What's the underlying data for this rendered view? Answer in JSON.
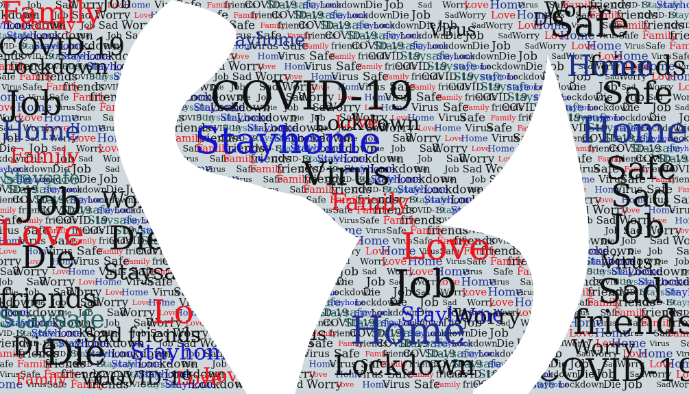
{
  "palette": {
    "background": "#ffffff",
    "land": "#cfd8dc",
    "black": "#111111",
    "red": "#e8151c",
    "blue": "#1414c8",
    "navy": "#1c2f8c",
    "teal": "#1f5f5f",
    "gray": "#444444"
  },
  "words": [
    {
      "text": "Family",
      "color": "red"
    },
    {
      "text": "Job",
      "color": "black"
    },
    {
      "text": "Family",
      "color": "red"
    },
    {
      "text": "COVID-19",
      "color": "black"
    },
    {
      "text": "Lockdown",
      "color": "black"
    },
    {
      "text": "Job",
      "color": "black"
    },
    {
      "text": "Home",
      "color": "navy"
    },
    {
      "text": "Family",
      "color": "red"
    },
    {
      "text": "Staysafe",
      "color": "teal"
    },
    {
      "text": "Job",
      "color": "black"
    },
    {
      "text": "Love",
      "color": "red"
    },
    {
      "text": "Die",
      "color": "black"
    },
    {
      "text": "friends",
      "color": "black"
    },
    {
      "text": "Staysafe",
      "color": "teal"
    },
    {
      "text": "Die",
      "color": "black"
    },
    {
      "text": "Family",
      "color": "red"
    },
    {
      "text": "COVID-19",
      "color": "black"
    },
    {
      "text": "Die",
      "color": "black"
    },
    {
      "text": "Worry",
      "color": "black"
    },
    {
      "text": "Staysafe",
      "color": "black"
    },
    {
      "text": "Stayhome",
      "color": "navy"
    },
    {
      "text": "Stayhome",
      "color": "blue"
    },
    {
      "text": "COVID-19",
      "color": "black"
    },
    {
      "text": "Love",
      "color": "red"
    },
    {
      "text": "Lockdown",
      "color": "black"
    },
    {
      "text": "Virus",
      "color": "black"
    },
    {
      "text": "Family",
      "color": "red"
    },
    {
      "text": "Virus",
      "color": "black"
    },
    {
      "text": "Safe",
      "color": "black"
    },
    {
      "text": "Worry",
      "color": "black"
    },
    {
      "text": "Die",
      "color": "black"
    },
    {
      "text": "friends",
      "color": "black"
    },
    {
      "text": "Love",
      "color": "red"
    },
    {
      "text": "Home",
      "color": "navy"
    },
    {
      "text": "Love",
      "color": "red"
    },
    {
      "text": "friends",
      "color": "black"
    },
    {
      "text": "Love",
      "color": "red"
    },
    {
      "text": "Job",
      "color": "black"
    },
    {
      "text": "Stayhome",
      "color": "blue"
    },
    {
      "text": "Home",
      "color": "navy"
    },
    {
      "text": "Lockdown",
      "color": "black"
    },
    {
      "text": "Worry",
      "color": "black"
    },
    {
      "text": "Safe",
      "color": "black"
    },
    {
      "text": "Home",
      "color": "navy"
    },
    {
      "text": "Safe",
      "color": "black"
    },
    {
      "text": "Sad",
      "color": "black"
    },
    {
      "text": "Job",
      "color": "black"
    },
    {
      "text": "Virus",
      "color": "black"
    },
    {
      "text": "Sad",
      "color": "black"
    },
    {
      "text": "friends",
      "color": "black"
    },
    {
      "text": "COVID-19",
      "color": "black"
    },
    {
      "text": "Worry",
      "color": "black"
    },
    {
      "text": "Stayhome",
      "color": "blue"
    },
    {
      "text": "Virus",
      "color": "black"
    },
    {
      "text": "Sad",
      "color": "black"
    },
    {
      "text": "Die",
      "color": "black"
    },
    {
      "text": "friends",
      "color": "black"
    },
    {
      "text": "Love",
      "color": "red"
    }
  ],
  "filler_words": [
    {
      "text": "Die",
      "color": "black"
    },
    {
      "text": "Job",
      "color": "black"
    },
    {
      "text": "Sad",
      "color": "black"
    },
    {
      "text": "Worry",
      "color": "black"
    },
    {
      "text": "Love",
      "color": "red"
    },
    {
      "text": "Home",
      "color": "navy"
    },
    {
      "text": "Virus",
      "color": "black"
    },
    {
      "text": "Safe",
      "color": "black"
    },
    {
      "text": "Family",
      "color": "red"
    },
    {
      "text": "friends",
      "color": "black"
    },
    {
      "text": "COVID-19",
      "color": "black"
    },
    {
      "text": "Staysafe",
      "color": "teal"
    },
    {
      "text": "Stayhome",
      "color": "blue"
    },
    {
      "text": "Lockdown",
      "color": "black"
    }
  ]
}
